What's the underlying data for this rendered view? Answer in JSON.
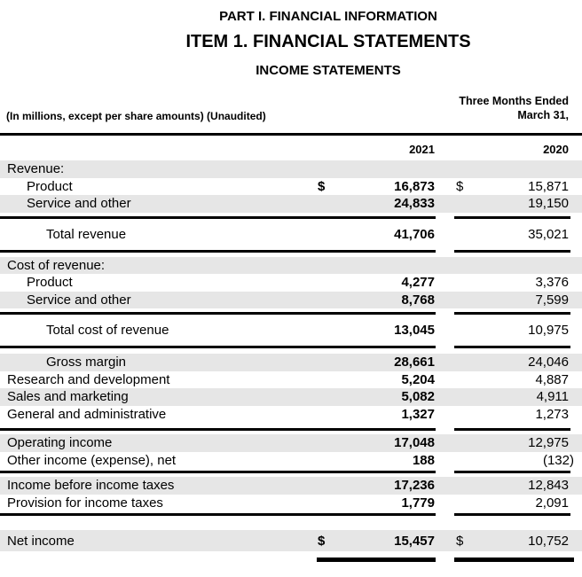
{
  "page": {
    "title_part": "PART I. FINANCIAL INFORMATION",
    "title_item": "ITEM 1. FINANCIAL STATEMENTS",
    "title_statement": "INCOME STATEMENTS"
  },
  "meta": {
    "left_note": "(In millions, except per share amounts) (Unaudited)",
    "period_line1": "Three Months Ended",
    "period_line2": "March 31,"
  },
  "table": {
    "col_headers": {
      "y2021": "2021",
      "y2020": "2020"
    },
    "rows": [
      {
        "label": "Revenue:",
        "d1": "",
        "v1": "",
        "d2": "",
        "v2": ""
      },
      {
        "label": "Product",
        "d1": "$",
        "v1": "16,873",
        "d2": "$",
        "v2": "15,871"
      },
      {
        "label": "Service and other",
        "d1": "",
        "v1": "24,833",
        "d2": "",
        "v2": "19,150"
      },
      {
        "label": "Total revenue",
        "d1": "",
        "v1": "41,706",
        "d2": "",
        "v2": "35,021"
      },
      {
        "label": "Cost of revenue:",
        "d1": "",
        "v1": "",
        "d2": "",
        "v2": ""
      },
      {
        "label": "Product",
        "d1": "",
        "v1": "4,277",
        "d2": "",
        "v2": "3,376"
      },
      {
        "label": "Service and other",
        "d1": "",
        "v1": "8,768",
        "d2": "",
        "v2": "7,599"
      },
      {
        "label": "Total cost of revenue",
        "d1": "",
        "v1": "13,045",
        "d2": "",
        "v2": "10,975"
      },
      {
        "label": "Gross margin",
        "d1": "",
        "v1": "28,661",
        "d2": "",
        "v2": "24,046"
      },
      {
        "label": "Research and development",
        "d1": "",
        "v1": "5,204",
        "d2": "",
        "v2": "4,887"
      },
      {
        "label": "Sales and marketing",
        "d1": "",
        "v1": "5,082",
        "d2": "",
        "v2": "4,911"
      },
      {
        "label": "General and administrative",
        "d1": "",
        "v1": "1,327",
        "d2": "",
        "v2": "1,273"
      },
      {
        "label": "Operating income",
        "d1": "",
        "v1": "17,048",
        "d2": "",
        "v2": "12,975"
      },
      {
        "label": "Other income (expense), net",
        "d1": "",
        "v1": "188",
        "d2": "",
        "v2": "(132)"
      },
      {
        "label": "Income before income taxes",
        "d1": "",
        "v1": "17,236",
        "d2": "",
        "v2": "12,843"
      },
      {
        "label": "Provision for income taxes",
        "d1": "",
        "v1": "1,779",
        "d2": "",
        "v2": "2,091"
      },
      {
        "label": "Net income",
        "d1": "$",
        "v1": "15,457",
        "d2": "$",
        "v2": "10,752"
      }
    ]
  },
  "colors": {
    "row_shade": "#e6e6e6",
    "rule": "#000000",
    "text": "#000000",
    "background": "#ffffff"
  }
}
